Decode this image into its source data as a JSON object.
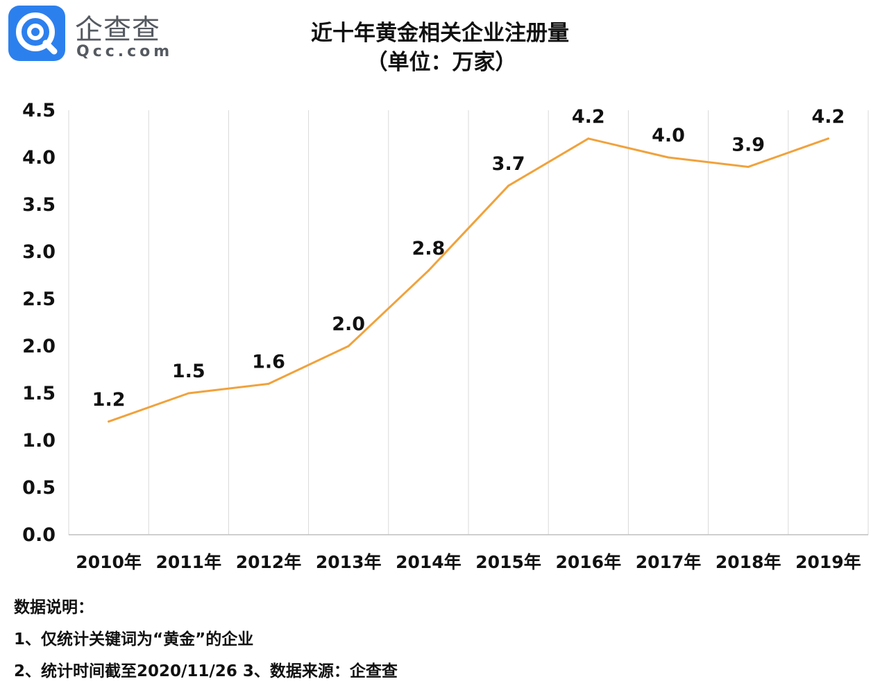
{
  "logo": {
    "name": "企查查",
    "domain": "Qcc.com",
    "color": "#2c80ee"
  },
  "chart_data": {
    "type": "line",
    "title": "近十年黄金相关企业注册量",
    "subtitle": "（单位：万家）",
    "xlabel": "",
    "ylabel": "",
    "categories": [
      "2010年",
      "2011年",
      "2012年",
      "2013年",
      "2014年",
      "2015年",
      "2016年",
      "2017年",
      "2018年",
      "2019年"
    ],
    "series": [
      {
        "values": [
          1.2,
          1.5,
          1.6,
          2.0,
          2.8,
          3.7,
          4.2,
          4.0,
          3.9,
          4.2
        ],
        "labels": [
          "1.2",
          "1.5",
          "1.6",
          "2.0",
          "2.8",
          "3.7",
          "4.2",
          "4.0",
          "3.9",
          "4.2"
        ],
        "color": "#f0a23c"
      }
    ],
    "ylim": [
      0,
      4.5
    ],
    "yticks": [
      "0.0",
      "0.5",
      "1.0",
      "1.5",
      "2.0",
      "2.5",
      "3.0",
      "3.5",
      "4.0",
      "4.5"
    ],
    "grid": "vertical",
    "legend": "none"
  },
  "notes": {
    "heading": "数据说明：",
    "line1": "1、仅统计关键词为“黄金”的企业",
    "line2": "2、统计时间截至2020/11/26  3、数据来源：企查查"
  }
}
